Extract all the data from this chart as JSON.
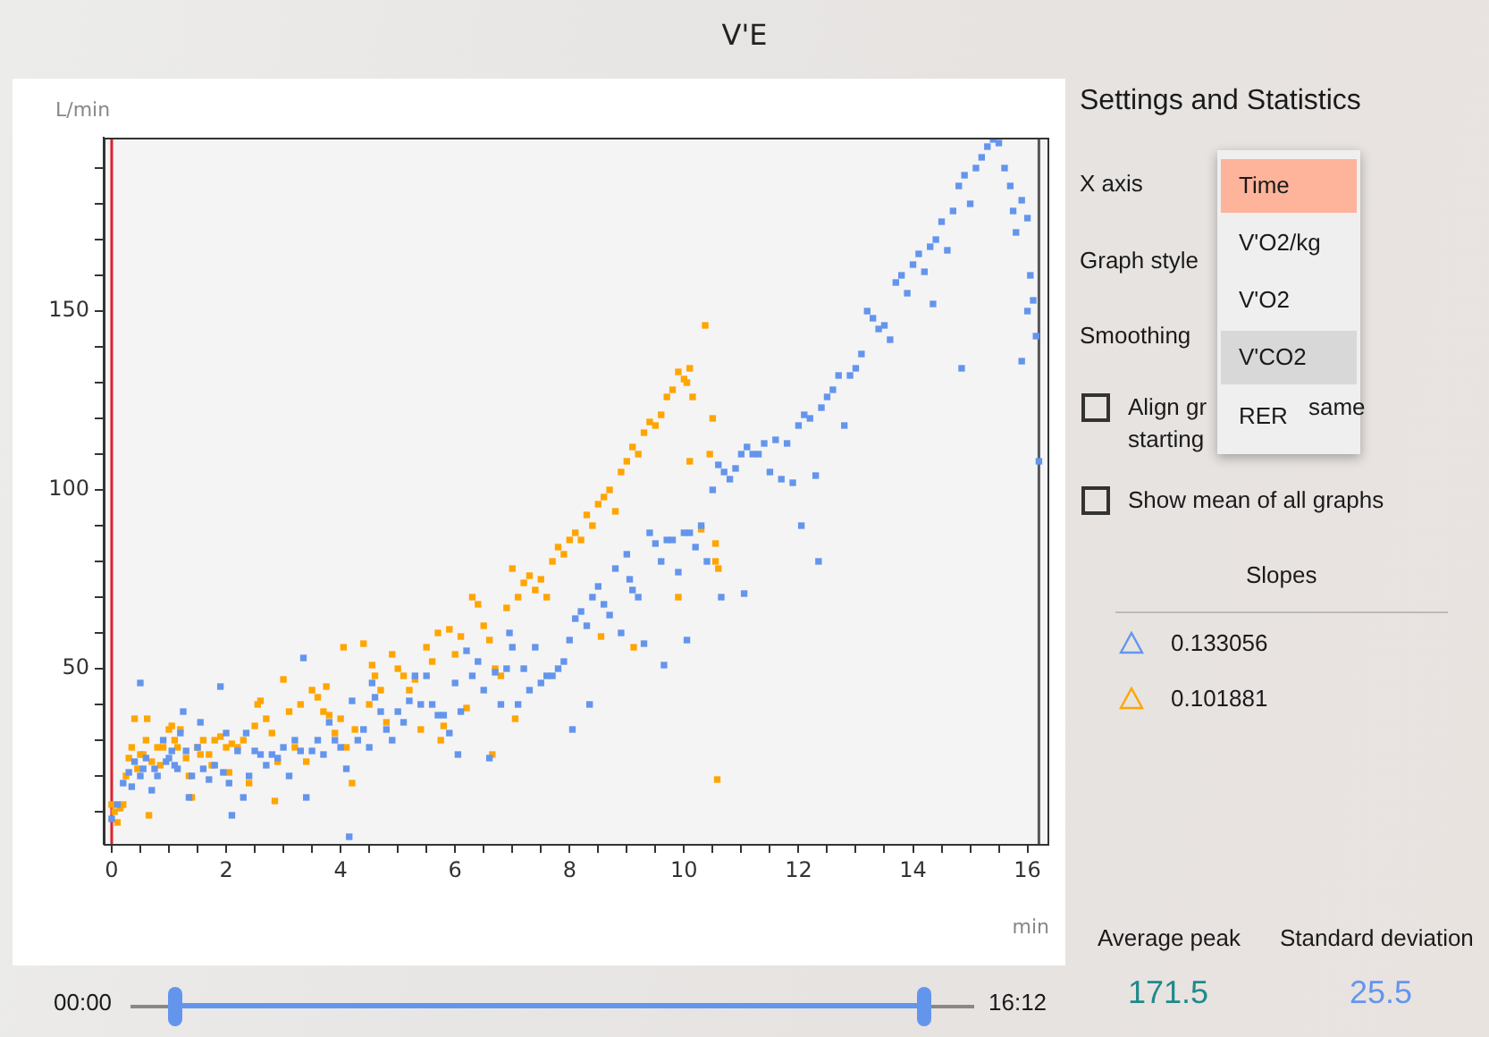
{
  "chart_data": {
    "type": "scatter",
    "title": "V'E",
    "xlabel": "min",
    "ylabel": "L/min",
    "xlim": [
      -0.14,
      16.35
    ],
    "ylim": [
      1,
      198.5
    ],
    "xticks": [
      0,
      {
        "value": 0.5,
        "label": null
      },
      {
        "value": 1,
        "label": null
      },
      {
        "value": 1.5,
        "label": null
      },
      2,
      {
        "value": 2.5,
        "label": null
      },
      {
        "value": 3,
        "label": null
      },
      {
        "value": 3.5,
        "label": null
      },
      4,
      {
        "value": 4.5,
        "label": null
      },
      {
        "value": 5,
        "label": null
      },
      {
        "value": 5.5,
        "label": null
      },
      6,
      {
        "value": 6.5,
        "label": null
      },
      {
        "value": 7,
        "label": null
      },
      {
        "value": 7.5,
        "label": null
      },
      8,
      {
        "value": 8.5,
        "label": null
      },
      {
        "value": 9,
        "label": null
      },
      {
        "value": 9.5,
        "label": null
      },
      10,
      {
        "value": 10.5,
        "label": null
      },
      {
        "value": 11,
        "label": null
      },
      {
        "value": 11.5,
        "label": null
      },
      12,
      {
        "value": 12.5,
        "label": null
      },
      {
        "value": 13,
        "label": null
      },
      {
        "value": 13.5,
        "label": null
      },
      14,
      {
        "value": 14.5,
        "label": null
      },
      {
        "value": 15,
        "label": null
      },
      {
        "value": 15.5,
        "label": null
      },
      16
    ],
    "yticks": [
      {
        "value": 10,
        "label": null
      },
      {
        "value": 20,
        "label": null
      },
      {
        "value": 30,
        "label": null
      },
      {
        "value": 40,
        "label": null
      },
      50,
      {
        "value": 60,
        "label": null
      },
      {
        "value": 70,
        "label": null
      },
      {
        "value": 80,
        "label": null
      },
      {
        "value": 90,
        "label": null
      },
      100,
      {
        "value": 110,
        "label": null
      },
      {
        "value": 120,
        "label": null
      },
      {
        "value": 130,
        "label": null
      },
      {
        "value": 140,
        "label": null
      },
      150,
      {
        "value": 160,
        "label": null
      },
      {
        "value": 170,
        "label": null
      },
      {
        "value": 180,
        "label": null
      },
      {
        "value": 190,
        "label": null
      }
    ],
    "legend": false,
    "marker": "square",
    "ref_lines": [
      {
        "axis": "x",
        "value": 0,
        "color": "#e02030"
      },
      {
        "axis": "x",
        "value": 16.2,
        "color": "#555555"
      }
    ],
    "series": [
      {
        "color": "#6495ed",
        "x": [
          0,
          0.1,
          0.2,
          0.3,
          0.35,
          0.4,
          0.5,
          0.5,
          0.55,
          0.6,
          0.7,
          0.75,
          0.8,
          0.9,
          0.95,
          1.0,
          1.05,
          1.1,
          1.15,
          1.2,
          1.25,
          1.3,
          1.35,
          1.4,
          1.5,
          1.55,
          1.6,
          1.7,
          1.8,
          1.9,
          1.95,
          2.0,
          2.05,
          2.1,
          2.2,
          2.3,
          2.35,
          2.4,
          2.5,
          2.6,
          2.7,
          2.8,
          2.9,
          3.0,
          3.1,
          3.2,
          3.3,
          3.35,
          3.4,
          3.5,
          3.6,
          3.7,
          3.8,
          3.9,
          4.0,
          4.1,
          4.15,
          4.2,
          4.3,
          4.4,
          4.5,
          4.55,
          4.6,
          4.7,
          4.8,
          4.9,
          5.0,
          5.1,
          5.2,
          5.3,
          5.4,
          5.5,
          5.6,
          5.7,
          5.8,
          5.9,
          6.0,
          6.05,
          6.1,
          6.2,
          6.3,
          6.4,
          6.5,
          6.6,
          6.7,
          6.8,
          6.9,
          6.95,
          7.0,
          7.1,
          7.2,
          7.3,
          7.4,
          7.5,
          7.6,
          7.7,
          7.8,
          7.9,
          8.0,
          8.05,
          8.1,
          8.2,
          8.3,
          8.35,
          8.4,
          8.5,
          8.6,
          8.7,
          8.8,
          8.9,
          9.0,
          9.05,
          9.1,
          9.2,
          9.3,
          9.4,
          9.5,
          9.6,
          9.65,
          9.7,
          9.8,
          9.9,
          10.0,
          10.05,
          10.1,
          10.2,
          10.3,
          10.4,
          10.5,
          10.6,
          10.65,
          10.7,
          10.8,
          10.9,
          11.0,
          11.05,
          11.1,
          11.2,
          11.3,
          11.4,
          11.5,
          11.6,
          11.7,
          11.8,
          11.9,
          12.0,
          12.05,
          12.1,
          12.2,
          12.3,
          12.35,
          12.4,
          12.5,
          12.6,
          12.7,
          12.8,
          12.9,
          13.0,
          13.1,
          13.2,
          13.3,
          13.4,
          13.5,
          13.6,
          13.7,
          13.8,
          13.9,
          14.0,
          14.1,
          14.2,
          14.3,
          14.35,
          14.4,
          14.5,
          14.6,
          14.7,
          14.8,
          14.85,
          14.9,
          15.0,
          15.1,
          15.2,
          15.3,
          15.4,
          15.5,
          15.6,
          15.7,
          15.75,
          15.8,
          15.9,
          15.9,
          16.0,
          16.0,
          16.05,
          16.1,
          16.15,
          16.2
        ],
        "values": [
          8,
          12,
          18,
          21,
          17,
          24,
          46,
          20,
          22,
          25,
          16,
          22,
          20,
          30,
          24,
          25,
          27,
          23,
          22,
          32,
          38,
          27,
          14,
          20,
          28,
          35,
          22,
          19,
          23,
          45,
          21,
          32,
          18,
          9,
          27,
          14,
          32,
          20,
          27,
          26,
          23,
          26,
          25,
          28,
          20,
          30,
          27,
          53,
          14,
          27,
          30,
          26,
          35,
          30,
          28,
          22,
          3,
          41,
          30,
          33,
          28,
          46,
          42,
          38,
          33,
          30,
          38,
          35,
          41,
          48,
          40,
          48,
          40,
          37,
          37,
          32,
          46,
          26,
          38,
          55,
          48,
          52,
          44,
          25,
          49,
          40,
          50,
          60,
          56,
          40,
          50,
          44,
          56,
          46,
          48,
          48,
          50,
          52,
          58,
          33,
          64,
          66,
          62,
          40,
          70,
          73,
          68,
          65,
          78,
          60,
          82,
          75,
          72,
          70,
          57,
          88,
          85,
          80,
          51,
          86,
          86,
          77,
          88,
          58,
          88,
          84,
          90,
          80,
          100,
          107,
          70,
          105,
          103,
          106,
          110,
          71,
          112,
          110,
          110,
          113,
          105,
          114,
          103,
          113,
          102,
          118,
          90,
          121,
          120,
          104,
          80,
          123,
          126,
          128,
          132,
          118,
          132,
          134,
          138,
          150,
          148,
          145,
          146,
          142,
          158,
          160,
          155,
          163,
          166,
          161,
          168,
          152,
          170,
          175,
          167,
          178,
          185,
          134,
          188,
          180,
          190,
          193,
          196,
          198,
          197,
          190,
          185,
          178,
          172,
          181,
          136,
          176,
          150,
          160,
          153,
          143,
          108
        ]
      },
      {
        "color": "#ffa500",
        "x": [
          0,
          0.05,
          0.1,
          0.15,
          0.2,
          0.25,
          0.3,
          0.35,
          0.4,
          0.45,
          0.5,
          0.55,
          0.6,
          0.62,
          0.65,
          0.7,
          0.8,
          0.85,
          0.9,
          1.0,
          1.05,
          1.1,
          1.15,
          1.2,
          1.3,
          1.35,
          1.4,
          1.5,
          1.55,
          1.6,
          1.7,
          1.75,
          1.8,
          1.9,
          2.0,
          2.05,
          2.1,
          2.2,
          2.3,
          2.4,
          2.5,
          2.55,
          2.6,
          2.7,
          2.8,
          2.85,
          2.9,
          3.0,
          3.1,
          3.2,
          3.3,
          3.4,
          3.5,
          3.6,
          3.7,
          3.75,
          3.8,
          3.9,
          4.0,
          4.05,
          4.1,
          4.2,
          4.25,
          4.4,
          4.5,
          4.55,
          4.6,
          4.7,
          4.8,
          4.9,
          5.0,
          5.1,
          5.2,
          5.3,
          5.4,
          5.5,
          5.6,
          5.7,
          5.75,
          5.8,
          5.9,
          6.0,
          6.1,
          6.2,
          6.3,
          6.4,
          6.5,
          6.6,
          6.65,
          6.7,
          6.8,
          6.9,
          7.0,
          7.05,
          7.1,
          7.2,
          7.3,
          7.4,
          7.5,
          7.6,
          7.7,
          7.8,
          7.9,
          8.0,
          8.1,
          8.2,
          8.3,
          8.4,
          8.5,
          8.55,
          8.6,
          8.7,
          8.8,
          8.9,
          9.0,
          9.1,
          9.12,
          9.2,
          9.3,
          9.4,
          9.5,
          9.6,
          9.7,
          9.8,
          9.9,
          9.9,
          10.0,
          10.05,
          10.1,
          10.1,
          10.15,
          10.3,
          10.37,
          10.45,
          10.5,
          10.55,
          10.55,
          10.58,
          10.6
        ],
        "values": [
          12,
          10,
          7,
          11,
          12,
          20,
          25,
          28,
          36,
          22,
          26,
          26,
          30,
          36,
          9,
          24,
          28,
          23,
          28,
          33,
          34,
          30,
          28,
          33,
          25,
          20,
          14,
          28,
          26,
          30,
          26,
          23,
          30,
          31,
          28,
          21,
          29,
          28,
          30,
          18,
          34,
          40,
          41,
          36,
          32,
          13,
          24,
          47,
          38,
          28,
          40,
          24,
          44,
          42,
          38,
          45,
          37,
          32,
          36,
          56,
          28,
          18,
          33,
          57,
          40,
          51,
          48,
          44,
          35,
          54,
          50,
          48,
          44,
          47,
          33,
          56,
          52,
          60,
          30,
          34,
          61,
          54,
          59,
          39,
          70,
          68,
          62,
          58,
          26,
          50,
          48,
          67,
          78,
          36,
          70,
          74,
          76,
          72,
          75,
          70,
          80,
          84,
          82,
          86,
          88,
          86,
          93,
          90,
          96,
          59,
          98,
          100,
          94,
          105,
          108,
          112,
          56,
          110,
          116,
          119,
          118,
          121,
          126,
          128,
          133,
          70,
          131,
          130,
          134,
          108,
          126,
          89,
          146,
          110,
          120,
          85,
          80,
          19,
          78
        ]
      }
    ],
    "annotations": [
      "00:00",
      "16:12",
      "Settings and Statistics",
      "X axis",
      "Graph style",
      "Smoothing",
      "Align gr",
      "same",
      "starting",
      "Show mean of all graphs",
      "Slopes",
      "0.133056",
      "0.101881",
      "Average peak",
      "Standard deviation",
      "171.5",
      "25.5",
      "Time",
      "V'O2/kg",
      "V'O2",
      "V'CO2",
      "RER"
    ]
  }
}
